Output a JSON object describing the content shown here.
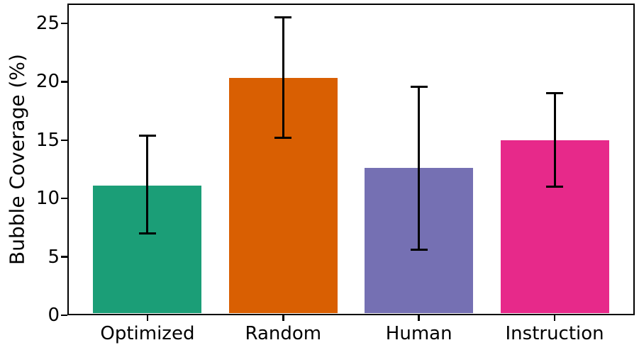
{
  "chart_data": {
    "type": "bar",
    "title": "",
    "xlabel": "",
    "ylabel": "Bubble Coverage (%)",
    "categories": [
      "Optimized",
      "Random",
      "Human",
      "Instruction"
    ],
    "values": [
      11.1,
      20.3,
      12.6,
      15.0
    ],
    "error_low": [
      7.0,
      15.2,
      5.6,
      11.0
    ],
    "error_high": [
      15.4,
      25.5,
      19.6,
      19.0
    ],
    "bar_colors": [
      "#1b9e77",
      "#d95f02",
      "#7570b3",
      "#e7298a"
    ],
    "yticks": [
      0,
      5,
      10,
      15,
      20,
      25
    ],
    "ylim": [
      0,
      26.7
    ],
    "grid": false,
    "legend_position": "none",
    "frame": "full-box",
    "axis_color": "#000000",
    "error_bar_color": "#000000"
  }
}
